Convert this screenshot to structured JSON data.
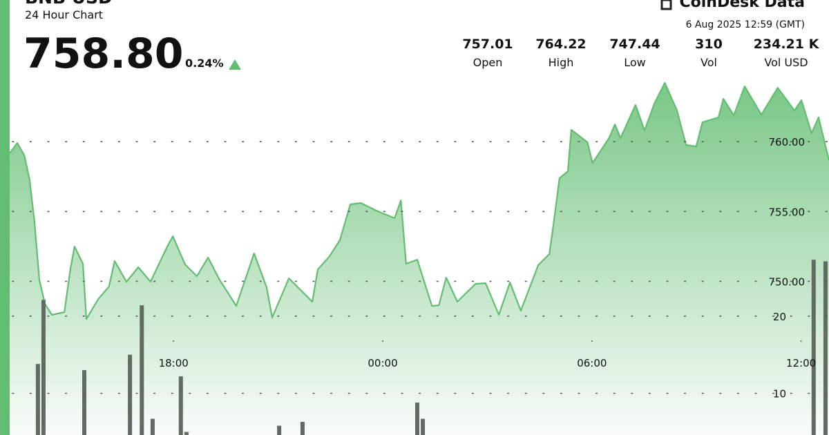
{
  "header": {
    "title": "BNB USD",
    "subtitle": "24 Hour Chart",
    "price": "758.80",
    "change": "0.24%",
    "brand": "CoinDesk Data",
    "timestamp": "6 Aug 2025 12:59 (GMT)",
    "stats": [
      {
        "value": "757.01",
        "label": "Open"
      },
      {
        "value": "764.22",
        "label": "High"
      },
      {
        "value": "747.44",
        "label": "Low"
      },
      {
        "value": "310",
        "label": "Vol"
      },
      {
        "value": "234.21 K",
        "label": "Vol USD"
      }
    ]
  },
  "chart_data": [
    {
      "type": "area",
      "color": "#62bd72",
      "x": [
        -10.7,
        -10.48,
        -10.28,
        -10.13,
        -9.99,
        -9.85,
        -9.69,
        -9.49,
        -9.13,
        -8.96,
        -8.84,
        -8.6,
        -8.5,
        -8.16,
        -7.85,
        -7.69,
        -7.35,
        -7.01,
        -6.66,
        -6.18,
        -6.02,
        -5.67,
        -5.33,
        -5.01,
        -4.68,
        -4.2,
        -3.69,
        -3.33,
        -3.17,
        -2.69,
        -2.02,
        -1.86,
        -1.54,
        -1.23,
        -0.93,
        -0.63,
        -0.18,
        0.34,
        0.52,
        0.67,
        0.99,
        1.41,
        1.61,
        1.82,
        2.14,
        2.66,
        2.95,
        3.33,
        3.65,
        3.96,
        4.46,
        4.78,
        4.91,
        5.07,
        5.31,
        5.41,
        5.87,
        6.02,
        6.5,
        6.66,
        6.82,
        7.25,
        7.51,
        7.79,
        8.09,
        8.44,
        8.7,
        8.99,
        9.17,
        9.63,
        9.77,
        10.07,
        10.38,
        10.86,
        11.33,
        11.81,
        12.01,
        12.3,
        12.5,
        12.8
      ],
      "values": [
        759.17,
        759.91,
        759.02,
        757.29,
        754.32,
        750.12,
        748.39,
        747.6,
        747.8,
        750.86,
        752.49,
        751.26,
        747.3,
        748.73,
        749.63,
        751.45,
        749.97,
        751.01,
        749.97,
        752.49,
        753.23,
        751.21,
        750.37,
        751.7,
        750.12,
        748.24,
        752.0,
        749.58,
        747.4,
        750.22,
        748.54,
        750.86,
        751.75,
        752.94,
        755.51,
        755.61,
        755.06,
        754.52,
        755.8,
        751.26,
        751.55,
        748.24,
        748.29,
        750.27,
        748.54,
        749.82,
        749.87,
        747.6,
        749.92,
        747.9,
        751.16,
        751.95,
        754.32,
        757.39,
        757.88,
        760.85,
        759.96,
        758.47,
        760.3,
        761.24,
        760.25,
        762.63,
        760.8,
        762.73,
        764.21,
        762.23,
        759.76,
        759.66,
        761.39,
        761.74,
        763.07,
        761.89,
        763.96,
        761.93,
        763.86,
        762.23,
        762.97,
        760.6,
        761.74,
        758.67
      ],
      "xlim": [
        -10.7,
        12.8
      ],
      "ylim": [
        739,
        765.2
      ],
      "xticks": [
        {
          "value": -6,
          "label": "18:00"
        },
        {
          "value": 0,
          "label": "00:00"
        },
        {
          "value": 6,
          "label": "06:00"
        },
        {
          "value": 12,
          "label": "12:00"
        }
      ],
      "yticks": [
        {
          "value": 760,
          "label": "760.00"
        },
        {
          "value": 755,
          "label": "755.00"
        },
        {
          "value": 750,
          "label": "750.00"
        }
      ]
    },
    {
      "type": "bar",
      "color": "#626b61",
      "x": [
        -9.89,
        -9.73,
        -8.56,
        -7.25,
        -6.91,
        -6.6,
        -5.79,
        -5.63,
        -2.97,
        -2.3,
        0.99,
        1.15,
        12.36,
        12.7
      ],
      "values": [
        13.8,
        22.1,
        13.0,
        15.0,
        21.4,
        6.7,
        12.2,
        5.0,
        5.8,
        6.3,
        8.8,
        6.7,
        27.3,
        27.1
      ],
      "xlim": [
        -10.7,
        12.8
      ],
      "ylim": [
        4.6,
        30
      ],
      "yticks": [
        20,
        10
      ]
    }
  ]
}
